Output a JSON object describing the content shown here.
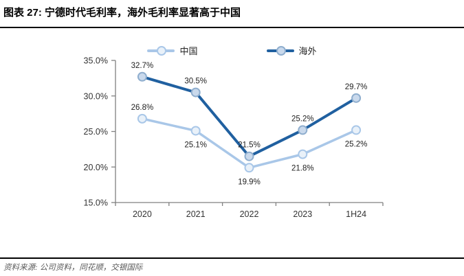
{
  "header": {
    "title": "图表 27: 宁德时代毛利率，海外毛利率显著高于中国"
  },
  "footer": {
    "source": "资料来源: 公司资料，同花顺，交银国际"
  },
  "chart_data": {
    "type": "line",
    "title": "图表 27: 宁德时代毛利率，海外毛利率显著高于中国",
    "categories": [
      "2020",
      "2021",
      "2022",
      "2023",
      "1H24"
    ],
    "series": [
      {
        "name": "中国",
        "values": [
          26.8,
          25.1,
          19.9,
          21.8,
          25.2
        ],
        "color": "#A9C7E8",
        "marker_fill": "#E9F1F9",
        "marker_stroke": "#A9C7E8",
        "label_positions": [
          "above",
          "below",
          "below",
          "below",
          "below"
        ]
      },
      {
        "name": "海外",
        "values": [
          32.7,
          30.5,
          21.5,
          25.2,
          29.7
        ],
        "color": "#2060A0",
        "marker_fill": "#C9D9EC",
        "marker_stroke": "#8FAECE",
        "label_positions": [
          "above",
          "above",
          "above",
          "above",
          "above"
        ]
      }
    ],
    "xlabel": "",
    "ylabel": "",
    "ylim": [
      15,
      35
    ],
    "ytick_labels": [
      "15.0%",
      "20.0%",
      "25.0%",
      "30.0%",
      "35.0%"
    ],
    "value_suffix": "%",
    "grid": false,
    "legend_position": "top",
    "axis_color": "#808080",
    "tick_label_color": "#333333",
    "data_label_color": "#1F1F1F"
  }
}
